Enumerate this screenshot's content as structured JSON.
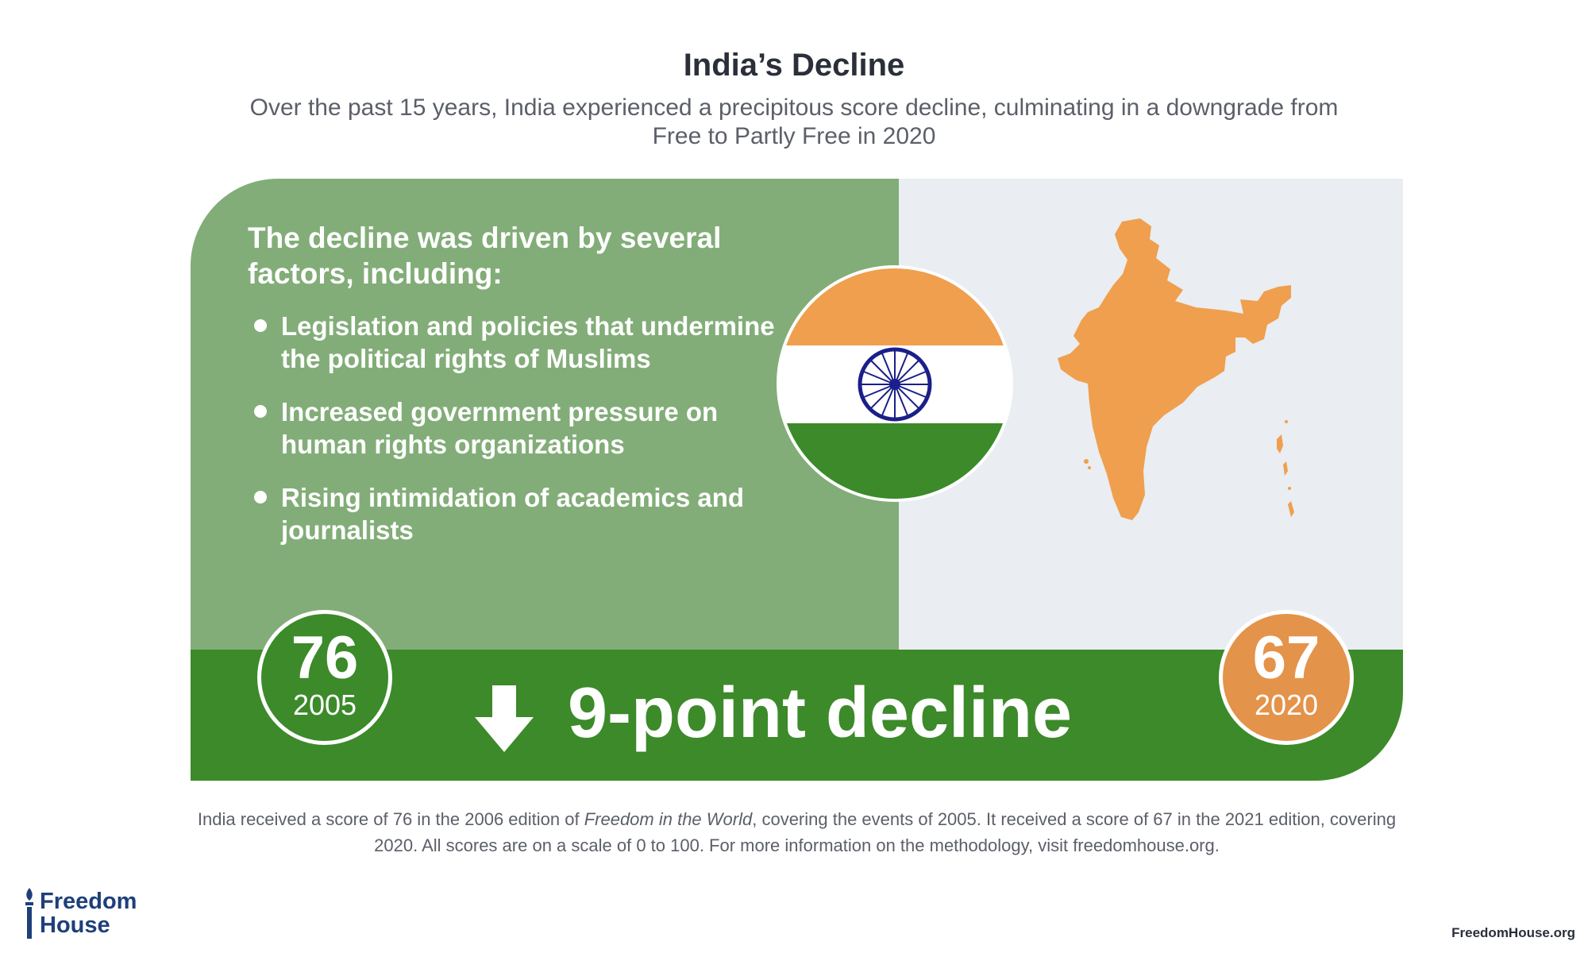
{
  "header": {
    "title": "India’s Decline",
    "subtitle": "Over the past 15 years, India experienced a precipitous score decline, culminating in a downgrade from Free to Partly Free in 2020"
  },
  "factors": {
    "heading": "The decline was driven by several factors, including:",
    "items": [
      "Legislation and policies that undermine the political rights of Muslims",
      "Increased government pressure on human rights organizations",
      "Rising intimidation of academics and journalists"
    ]
  },
  "scores": {
    "start": {
      "value": "76",
      "year": "2005"
    },
    "end": {
      "value": "67",
      "year": "2020"
    },
    "decline_label": "9-point decline"
  },
  "footnote": {
    "part1": "India received a score of 76 in the 2006 edition of ",
    "italic": "Freedom in the World",
    "part2": ", covering the events of 2005. It received a score of 67 in the 2021 edition, covering 2020. All scores are on a scale of 0 to 100. For more information on the methodology, visit freedomhouse.org."
  },
  "branding": {
    "logo_line1": "Freedom",
    "logo_line2": "House",
    "site": "FreedomHouse.org"
  },
  "icons": {
    "flag": "india-flag-icon",
    "map": "india-map-icon",
    "arrow": "arrow-down-icon",
    "logo": "torch-icon"
  },
  "colors": {
    "panel_green_light": "#82ad78",
    "band_green": "#3c8a2a",
    "map_panel_gray": "#eaedf1",
    "saffron": "#ef9f4e",
    "score_orange": "#e4934a",
    "chakra_navy": "#1b1f8a",
    "logo_blue": "#1e3f7a"
  }
}
